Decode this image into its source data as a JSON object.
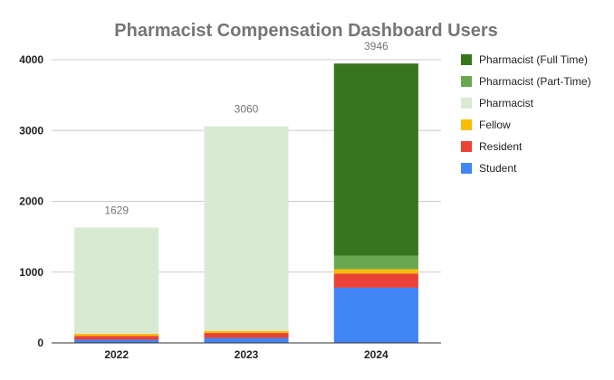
{
  "chart_data": {
    "type": "bar",
    "stacked": true,
    "title": "Pharmacist Compensation Dashboard Users",
    "xlabel": "",
    "ylabel": "",
    "categories": [
      "2022",
      "2023",
      "2024"
    ],
    "ylim": [
      0,
      4000
    ],
    "yticks": [
      0,
      1000,
      2000,
      3000,
      4000
    ],
    "grid": true,
    "legend_position": "right",
    "series": [
      {
        "name": "Student",
        "color": "#4285f4",
        "values": [
          45,
          70,
          780
        ]
      },
      {
        "name": "Resident",
        "color": "#ea4335",
        "values": [
          55,
          70,
          200
        ]
      },
      {
        "name": "Fellow",
        "color": "#fbbc04",
        "values": [
          30,
          30,
          60
        ]
      },
      {
        "name": "Pharmacist",
        "color": "#d9ead3",
        "values": [
          1499,
          2890,
          0
        ]
      },
      {
        "name": "Pharmacist (Part-Time)",
        "color": "#6aa84f",
        "values": [
          0,
          0,
          190
        ]
      },
      {
        "name": "Pharmacist (Full Time)",
        "color": "#38761d",
        "values": [
          0,
          0,
          2716
        ]
      }
    ],
    "totals": [
      1629,
      3060,
      3946
    ],
    "legend_order": [
      "Pharmacist (Full Time)",
      "Pharmacist (Part-Time)",
      "Pharmacist",
      "Fellow",
      "Resident",
      "Student"
    ]
  }
}
